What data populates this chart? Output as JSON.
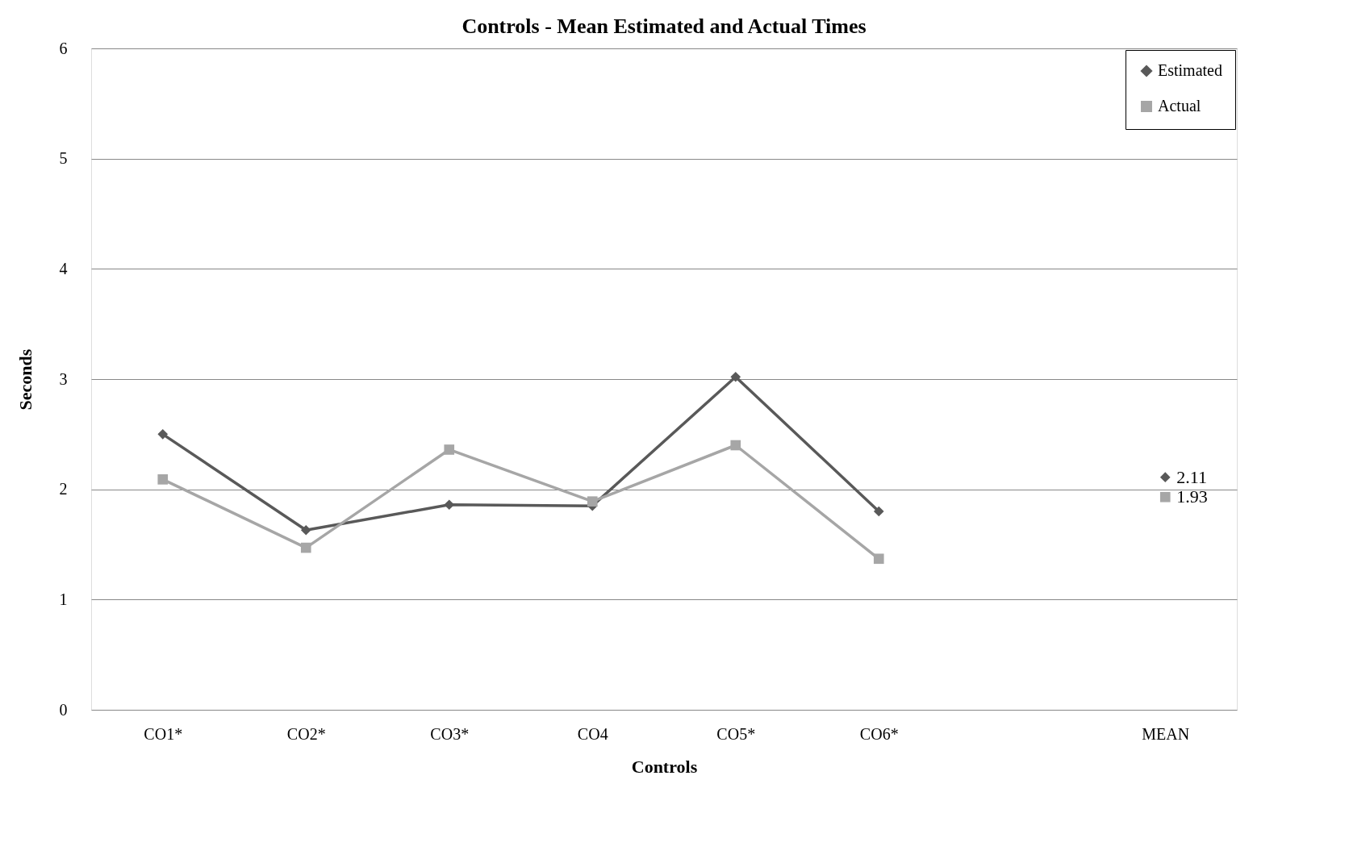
{
  "chart_data": {
    "type": "line",
    "title": "Controls - Mean Estimated and Actual Times",
    "xlabel": "Controls",
    "ylabel": "Seconds",
    "categories": [
      "CO1*",
      "CO2*",
      "CO3*",
      "CO4",
      "CO5*",
      "CO6*",
      null,
      "MEAN"
    ],
    "series": [
      {
        "name": "Estimated",
        "color": "#595959",
        "marker": "diamond",
        "values": [
          2.5,
          1.63,
          1.86,
          1.85,
          3.02,
          1.8,
          null,
          2.11
        ],
        "value_labels": [
          null,
          null,
          null,
          null,
          null,
          null,
          null,
          "2.11"
        ]
      },
      {
        "name": "Actual",
        "color": "#a6a6a6",
        "marker": "square",
        "values": [
          2.09,
          1.47,
          2.36,
          1.89,
          2.4,
          1.37,
          null,
          1.93
        ],
        "value_labels": [
          null,
          null,
          null,
          null,
          null,
          null,
          null,
          "1.93"
        ]
      }
    ],
    "ylim": [
      0,
      6
    ],
    "yticks": [
      0,
      1,
      2,
      3,
      4,
      5,
      6
    ],
    "grid": "y",
    "legend": "top right",
    "line_style": "solid"
  }
}
